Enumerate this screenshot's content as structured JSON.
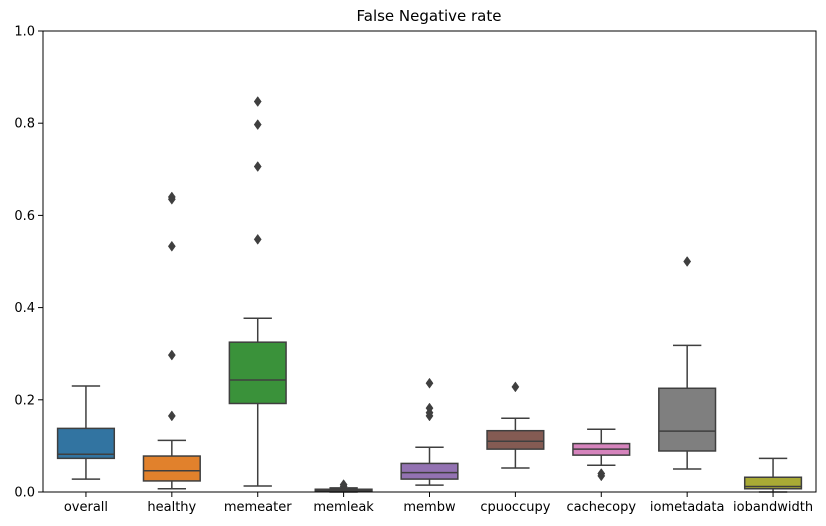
{
  "chart_data": {
    "type": "box",
    "title": "False Negative rate",
    "xlabel": "",
    "ylabel": "",
    "ylim": [
      0,
      1
    ],
    "yticks": [
      0.0,
      0.2,
      0.4,
      0.6,
      0.8,
      1.0
    ],
    "ytick_labels": [
      "0.0",
      "0.2",
      "0.4",
      "0.6",
      "0.8",
      "1.0"
    ],
    "grid": false,
    "legend": "none",
    "categories": [
      "overall",
      "healthy",
      "memeater",
      "memleak",
      "membw",
      "cpuoccupy",
      "cachecopy",
      "iometadata",
      "iobandwidth"
    ],
    "colors": [
      "#3274a1",
      "#e1812c",
      "#3a923a",
      "#c03d3e",
      "#9372b2",
      "#845b53",
      "#d684bd",
      "#7f7f7f",
      "#a9aa35"
    ],
    "line_color": "#3f3f3f",
    "boxes": [
      {
        "category": "overall",
        "whisker_low": 0.028,
        "q1": 0.073,
        "median": 0.082,
        "q3": 0.138,
        "whisker_high": 0.23,
        "outliers": []
      },
      {
        "category": "healthy",
        "whisker_low": 0.007,
        "q1": 0.024,
        "median": 0.046,
        "q3": 0.078,
        "whisker_high": 0.112,
        "outliers": [
          0.165,
          0.297,
          0.533,
          0.635,
          0.64
        ]
      },
      {
        "category": "memeater",
        "whisker_low": 0.013,
        "q1": 0.192,
        "median": 0.243,
        "q3": 0.325,
        "whisker_high": 0.377,
        "outliers": [
          0.548,
          0.706,
          0.797,
          0.847
        ]
      },
      {
        "category": "memleak",
        "whisker_low": 0.0,
        "q1": 0.001,
        "median": 0.003,
        "q3": 0.006,
        "whisker_high": 0.009,
        "outliers": [
          0.012,
          0.016
        ]
      },
      {
        "category": "membw",
        "whisker_low": 0.015,
        "q1": 0.028,
        "median": 0.042,
        "q3": 0.062,
        "whisker_high": 0.097,
        "outliers": [
          0.165,
          0.172,
          0.182,
          0.236
        ]
      },
      {
        "category": "cpuoccupy",
        "whisker_low": 0.052,
        "q1": 0.093,
        "median": 0.11,
        "q3": 0.133,
        "whisker_high": 0.16,
        "outliers": [
          0.228
        ]
      },
      {
        "category": "cachecopy",
        "whisker_low": 0.058,
        "q1": 0.08,
        "median": 0.093,
        "q3": 0.105,
        "whisker_high": 0.136,
        "outliers": [
          0.035,
          0.04
        ]
      },
      {
        "category": "iometadata",
        "whisker_low": 0.05,
        "q1": 0.089,
        "median": 0.132,
        "q3": 0.225,
        "whisker_high": 0.318,
        "outliers": [
          0.5
        ]
      },
      {
        "category": "iobandwidth",
        "whisker_low": 0.0,
        "q1": 0.007,
        "median": 0.012,
        "q3": 0.032,
        "whisker_high": 0.073,
        "outliers": []
      }
    ]
  }
}
